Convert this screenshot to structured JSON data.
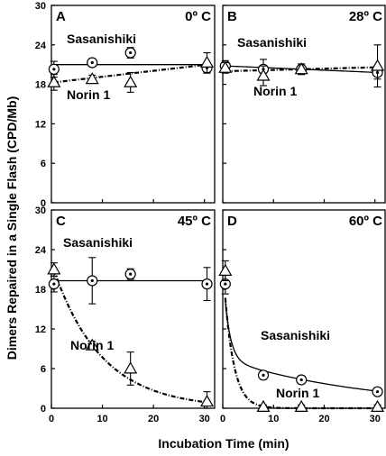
{
  "figure": {
    "ylabel": "Dimers Repaired in a Single Flash (CPD/Mb)",
    "xlabel": "Incubation Time (min)"
  },
  "chart_data": [
    {
      "type": "scatter",
      "panel": "A",
      "temperature_label": "0º C",
      "xlim": [
        0,
        32
      ],
      "ylim": [
        0,
        30
      ],
      "xticks": [
        0,
        10,
        20,
        30
      ],
      "yticks": [
        0,
        6,
        12,
        18,
        24,
        30
      ],
      "series": [
        {
          "name": "Sasanishiki",
          "marker": "circle",
          "line": "solid",
          "x": [
            0.5,
            8,
            15.5,
            30.5
          ],
          "y": [
            20.3,
            21.3,
            22.8,
            20.5
          ],
          "err": [
            1.2,
            0.6,
            0.8,
            0.8
          ],
          "fit": {
            "kind": "flat",
            "value": 21.0
          }
        },
        {
          "name": "Norin 1",
          "marker": "triangle",
          "line": "dashed",
          "x": [
            0.5,
            8,
            15.5,
            30.5
          ],
          "y": [
            18.3,
            18.8,
            18.3,
            21.3
          ],
          "err": [
            1.2,
            0.6,
            1.5,
            1.5
          ],
          "fit": {
            "kind": "linear",
            "start": 18.3,
            "end": 21.0
          }
        }
      ]
    },
    {
      "type": "scatter",
      "panel": "B",
      "temperature_label": "28º C",
      "xlim": [
        0,
        32
      ],
      "ylim": [
        0,
        30
      ],
      "xticks": [
        0,
        10,
        20,
        30
      ],
      "yticks": [
        0,
        6,
        12,
        18,
        24,
        30
      ],
      "series": [
        {
          "name": "Sasanishiki",
          "marker": "circle",
          "line": "solid",
          "x": [
            0.5,
            8,
            15.5,
            30.5
          ],
          "y": [
            20.8,
            20.3,
            20.3,
            19.8
          ],
          "err": [
            0.8,
            1.5,
            0.8,
            1.0
          ],
          "fit": {
            "kind": "linear",
            "start": 20.8,
            "end": 19.8
          }
        },
        {
          "name": "Norin 1",
          "marker": "triangle",
          "line": "dashed",
          "x": [
            0.5,
            8,
            15.5,
            30.5
          ],
          "y": [
            20.5,
            19.3,
            20.3,
            20.8
          ],
          "err": [
            0.8,
            1.5,
            0.8,
            3.2
          ],
          "fit": {
            "kind": "linear",
            "start": 20.0,
            "end": 20.6
          }
        }
      ]
    },
    {
      "type": "scatter",
      "panel": "C",
      "temperature_label": "45º C",
      "xlim": [
        0,
        32
      ],
      "ylim": [
        0,
        30
      ],
      "xticks": [
        0,
        10,
        20,
        30
      ],
      "yticks": [
        0,
        6,
        12,
        18,
        24,
        30
      ],
      "series": [
        {
          "name": "Sasanishiki",
          "marker": "circle",
          "line": "solid",
          "x": [
            0.5,
            8,
            15.5,
            30.5
          ],
          "y": [
            18.8,
            19.3,
            20.3,
            18.8
          ],
          "err": [
            1.2,
            3.5,
            0.8,
            2.5
          ],
          "fit": {
            "kind": "flat",
            "value": 19.3
          }
        },
        {
          "name": "Norin 1",
          "marker": "triangle",
          "line": "dashed",
          "x": [
            0.5,
            8,
            15.5,
            30.5
          ],
          "y": [
            21.0,
            9.5,
            6.0,
            1.0
          ],
          "err": [
            1.0,
            0.6,
            2.5,
            1.5
          ],
          "fit": {
            "kind": "exp",
            "a": 22.0,
            "k": 0.105
          }
        }
      ]
    },
    {
      "type": "scatter",
      "panel": "D",
      "temperature_label": "60º C",
      "xlim": [
        0,
        32
      ],
      "ylim": [
        0,
        30
      ],
      "xticks": [
        0,
        10,
        20,
        30
      ],
      "yticks": [
        0,
        6,
        12,
        18,
        24,
        30
      ],
      "series": [
        {
          "name": "Sasanishiki",
          "marker": "circle",
          "line": "solid",
          "x": [
            0.5,
            8,
            15.5,
            30.5
          ],
          "y": [
            18.8,
            5.0,
            4.3,
            2.5
          ],
          "err": [
            1.5,
            0.6,
            0.6,
            0.6
          ],
          "fit": {
            "kind": "biexp",
            "a1": 14.0,
            "k1": 0.9,
            "a2": 7.5,
            "k2": 0.035
          }
        },
        {
          "name": "Norin 1",
          "marker": "triangle",
          "line": "dashed",
          "x": [
            0.5,
            8,
            15.5,
            30.5
          ],
          "y": [
            20.8,
            0.2,
            0.2,
            0.2
          ],
          "err": [
            1.5,
            0.3,
            0.3,
            0.3
          ],
          "fit": {
            "kind": "exp",
            "a": 22.0,
            "k": 0.55
          }
        }
      ]
    }
  ]
}
